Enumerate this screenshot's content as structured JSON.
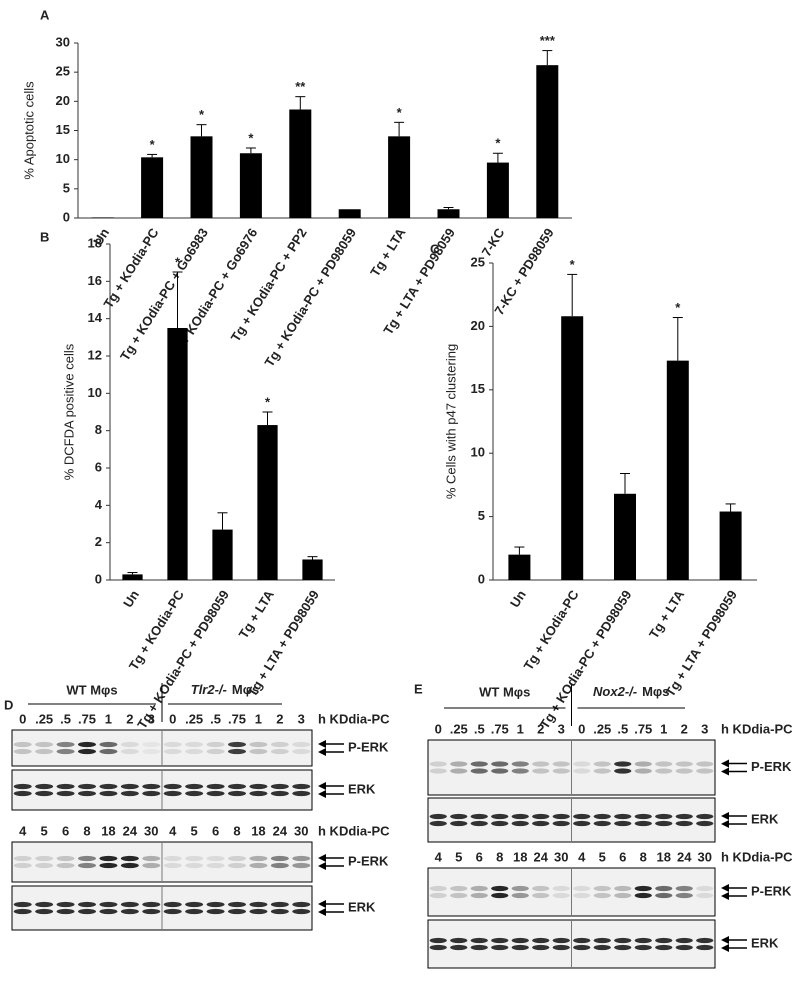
{
  "chart_data": [
    {
      "type": "bar",
      "panel": "A",
      "y_label": "% Apoptotic cells",
      "categories": [
        "Un",
        "Tg + KOdia-PC",
        "Tg + KOdia-PC + Go6983",
        "Tg + KOdia-PC + Go6976",
        "Tg + KOdia-PC + PP2",
        "Tg + KOdia-PC + PD98059",
        "Tg + LTA",
        "Tg + LTA + PD98059",
        "7-KC",
        "7-KC + PD98059"
      ],
      "values": [
        0.1,
        10.4,
        14,
        11.1,
        18.6,
        1.5,
        14,
        1.5,
        9.5,
        26.2
      ],
      "errors": [
        0,
        0.5,
        2,
        0.9,
        2.2,
        0,
        2.4,
        0.3,
        1.6,
        2.5
      ],
      "significance": [
        null,
        "*",
        "*",
        "*",
        "**",
        null,
        "*",
        null,
        "*",
        "***"
      ],
      "color": "#000000",
      "ylim": [
        0,
        30
      ],
      "yticks": [
        0,
        5,
        10,
        15,
        20,
        25,
        30
      ]
    },
    {
      "type": "bar",
      "panel": "B",
      "y_label": "% DCFDA positive cells",
      "categories": [
        "Un",
        "Tg + KOdia-PC",
        "Tg + KOdia-PC + PD98059",
        "Tg + LTA",
        "Tg + LTA + PD98059"
      ],
      "values": [
        0.3,
        13.5,
        2.7,
        8.3,
        1.1
      ],
      "errors": [
        0.1,
        3,
        0.9,
        0.7,
        0.15
      ],
      "significance": [
        null,
        "*",
        null,
        "*",
        null
      ],
      "color": "#000000",
      "ylim": [
        0,
        18
      ],
      "yticks": [
        0,
        2,
        4,
        6,
        8,
        10,
        12,
        14,
        16,
        18
      ]
    },
    {
      "type": "bar",
      "panel": "C",
      "y_label": "% Cells with p47 clustering",
      "categories": [
        "Un",
        "Tg + KOdia-PC",
        "Tg + KOdia-PC + PD98059",
        "Tg + LTA",
        "Tg + LTA + PD98059"
      ],
      "values": [
        2,
        20.8,
        6.8,
        17.3,
        5.4
      ],
      "errors": [
        0.6,
        3.3,
        1.6,
        3.4,
        0.6
      ],
      "significance": [
        null,
        "*",
        null,
        "*",
        null
      ],
      "color": "#000000",
      "ylim": [
        0,
        25
      ],
      "yticks": [
        0,
        5,
        10,
        15,
        20,
        25
      ]
    }
  ],
  "blots": [
    {
      "panel": "D",
      "groups": [
        "WT Mφs",
        {
          "genotype": "Tlr2-/-",
          "cell": "Mφs"
        }
      ],
      "rows": [
        {
          "times": [
            "0",
            ".25",
            ".5",
            ".75",
            "1",
            "2",
            "3",
            "0",
            ".25",
            ".5",
            ".75",
            "1",
            "2",
            "3"
          ],
          "unit": "h KDdia-PC",
          "bands": [
            "P-ERK",
            "ERK"
          ]
        },
        {
          "times": [
            "4",
            "5",
            "6",
            "8",
            "18",
            "24",
            "30",
            "4",
            "5",
            "6",
            "8",
            "18",
            "24",
            "30"
          ],
          "unit": "h KDdia-PC",
          "bands": [
            "P-ERK",
            "ERK"
          ]
        }
      ]
    },
    {
      "panel": "E",
      "groups": [
        "WT Mφs",
        {
          "genotype": "Nox2-/-",
          "cell": "Mφs"
        }
      ],
      "rows": [
        {
          "times": [
            "0",
            ".25",
            ".5",
            ".75",
            "1",
            "2",
            "3",
            "0",
            ".25",
            ".5",
            ".75",
            "1",
            "2",
            "3"
          ],
          "unit": "h KDdia-PC",
          "bands": [
            "P-ERK",
            "ERK"
          ]
        },
        {
          "times": [
            "4",
            "5",
            "6",
            "8",
            "18",
            "24",
            "30",
            "4",
            "5",
            "6",
            "8",
            "18",
            "24",
            "30"
          ],
          "unit": "h KDdia-PC",
          "bands": [
            "P-ERK",
            "ERK"
          ]
        }
      ]
    }
  ]
}
